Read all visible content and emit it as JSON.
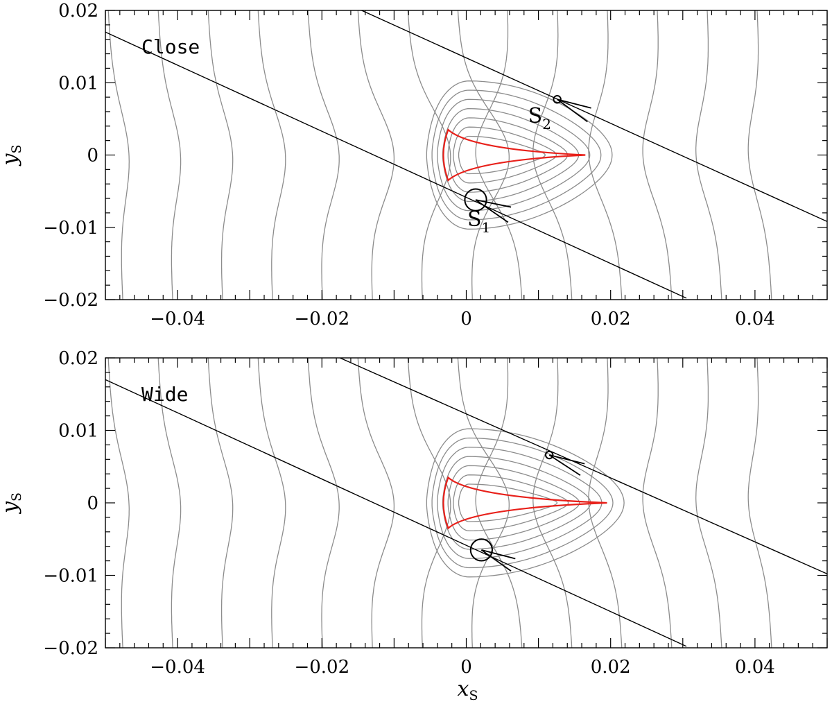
{
  "chart_data": [
    {
      "type": "line",
      "panel_label": "Close",
      "xlabel": "x",
      "xlabel_sub": "S",
      "ylabel": "y",
      "ylabel_sub": "S",
      "xlim": [
        -0.05,
        0.05
      ],
      "ylim": [
        -0.02,
        0.02
      ],
      "xticks": [
        -0.04,
        -0.02,
        0,
        0.02,
        0.04
      ],
      "xtick_labels": [
        "−0.04",
        "−0.02",
        "0",
        "0.02",
        "0.04"
      ],
      "yticks": [
        -0.02,
        -0.01,
        0,
        0.01,
        0.02
      ],
      "ytick_labels": [
        "−0.02",
        "−0.01",
        "0",
        "0.01",
        "0.02"
      ],
      "show_xlabel": false,
      "colors": {
        "contour": "#8c8c8c",
        "caustic": "#e8201a",
        "trajectory": "#000000"
      },
      "caustic_cusps": [
        [
          -0.0025,
          0.0035
        ],
        [
          -0.0025,
          -0.0035
        ],
        [
          0.0165,
          0.0
        ]
      ],
      "trajectories": [
        {
          "x": [
            -0.05,
            0.0305
          ],
          "y": [
            0.017,
            -0.0198
          ]
        },
        {
          "x": [
            -0.0145,
            0.05
          ],
          "y": [
            0.02,
            -0.0092
          ]
        }
      ],
      "sources": [
        {
          "label": "S",
          "sub": "1",
          "x": 0.0013,
          "y": -0.0062,
          "radius": 0.0015,
          "arrow_from": [
            [
              0.0062,
              -0.0072
            ],
            [
              0.0058,
              -0.0093
            ]
          ]
        },
        {
          "label": "S",
          "sub": "2",
          "x": 0.0126,
          "y": 0.0077,
          "radius": 0.0005,
          "arrow_from": [
            [
              0.0173,
              0.0065
            ],
            [
              0.0168,
              0.0046
            ]
          ]
        }
      ]
    },
    {
      "type": "line",
      "panel_label": "Wide",
      "xlabel": "x",
      "xlabel_sub": "S",
      "ylabel": "y",
      "ylabel_sub": "S",
      "xlim": [
        -0.05,
        0.05
      ],
      "ylim": [
        -0.02,
        0.02
      ],
      "xticks": [
        -0.04,
        -0.02,
        0,
        0.02,
        0.04
      ],
      "xtick_labels": [
        "−0.04",
        "−0.02",
        "0",
        "0.02",
        "0.04"
      ],
      "yticks": [
        -0.02,
        -0.01,
        0,
        0.01,
        0.02
      ],
      "ytick_labels": [
        "−0.02",
        "−0.01",
        "0",
        "0.01",
        "0.02"
      ],
      "show_xlabel": true,
      "colors": {
        "contour": "#8c8c8c",
        "caustic": "#e8201a",
        "trajectory": "#000000"
      },
      "caustic_cusps": [
        [
          -0.0025,
          0.0035
        ],
        [
          -0.0025,
          -0.0035
        ],
        [
          0.0195,
          0.0
        ]
      ],
      "trajectories": [
        {
          "x": [
            -0.05,
            0.0305
          ],
          "y": [
            0.017,
            -0.0198
          ]
        },
        {
          "x": [
            -0.0175,
            0.05
          ],
          "y": [
            0.02,
            -0.0098
          ]
        }
      ],
      "sources": [
        {
          "label": "",
          "sub": "",
          "x": 0.0021,
          "y": -0.0065,
          "radius": 0.0015,
          "arrow_from": [
            [
              0.0068,
              -0.0077
            ],
            [
              0.0062,
              -0.0094
            ]
          ]
        },
        {
          "label": "",
          "sub": "",
          "x": 0.0115,
          "y": 0.0066,
          "radius": 0.0005,
          "arrow_from": [
            [
              0.0164,
              0.0054
            ],
            [
              0.0158,
              0.0038
            ]
          ]
        }
      ]
    }
  ]
}
